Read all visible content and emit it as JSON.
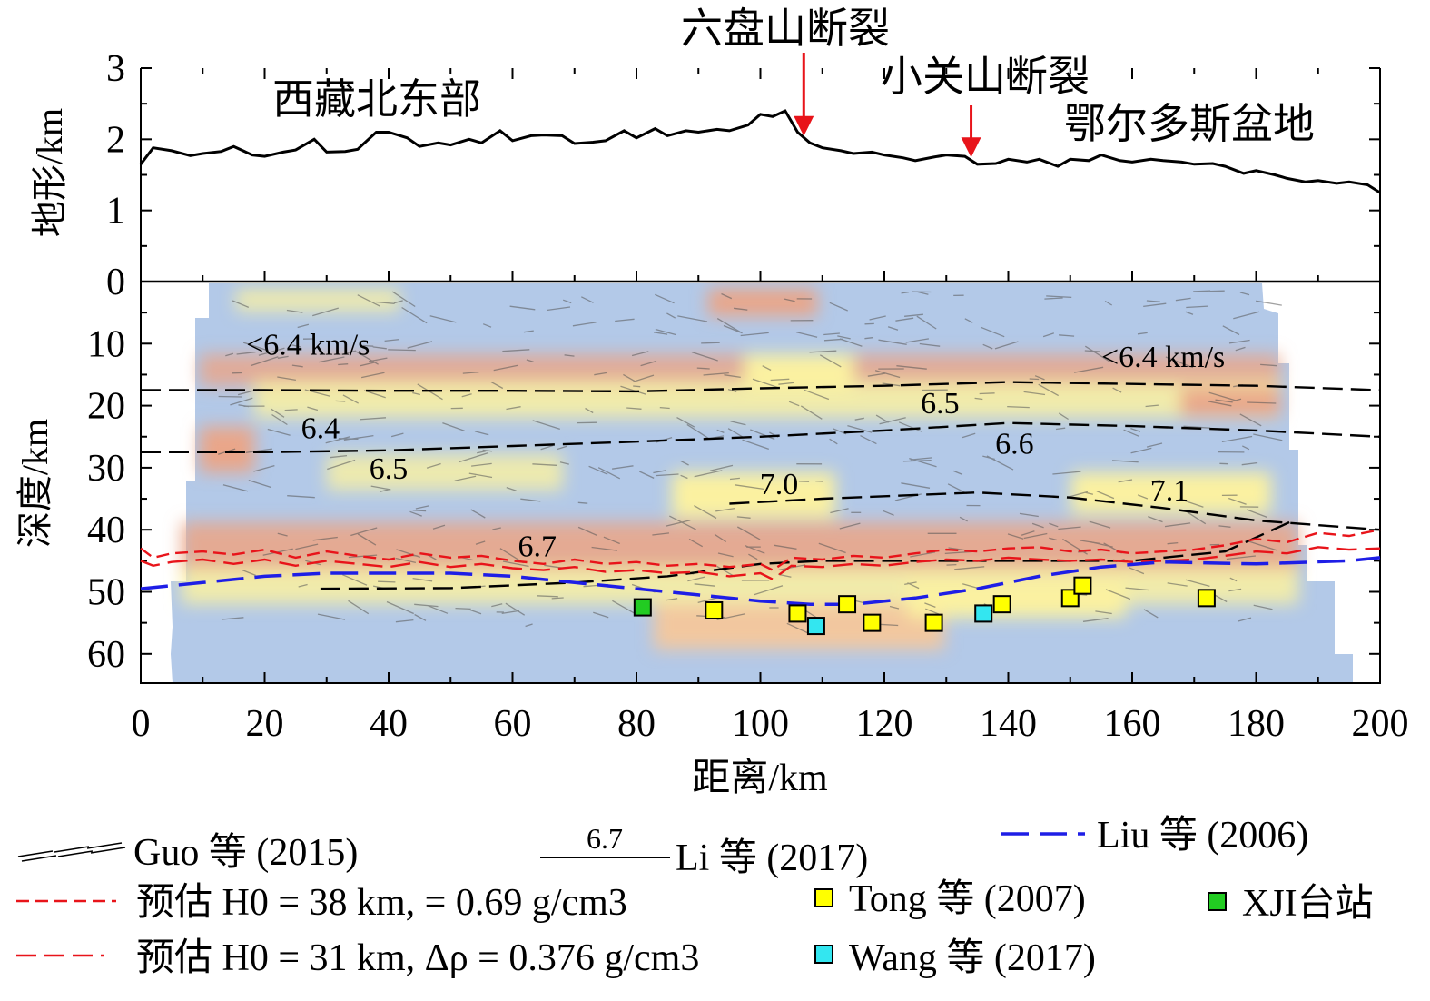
{
  "chart_data": {
    "type": "line",
    "topo_panel": {
      "ylabel": "地形/km",
      "ylim": [
        0,
        3
      ],
      "yticks": [
        "0",
        "1",
        "2",
        "3"
      ],
      "x": [
        0,
        2,
        5,
        8,
        10,
        13,
        15,
        18,
        20,
        23,
        25,
        28,
        30,
        33,
        35,
        38,
        40,
        43,
        45,
        48,
        50,
        53,
        55,
        58,
        60,
        63,
        65,
        68,
        70,
        73,
        75,
        78,
        80,
        83,
        85,
        88,
        90,
        93,
        95,
        98,
        100,
        102,
        104,
        106,
        108,
        110,
        113,
        115,
        118,
        120,
        123,
        125,
        128,
        130,
        133,
        135,
        138,
        140,
        143,
        145,
        148,
        150,
        153,
        155,
        158,
        160,
        163,
        165,
        168,
        170,
        173,
        175,
        178,
        180,
        183,
        185,
        188,
        190,
        193,
        195,
        198,
        200
      ],
      "y": [
        1.65,
        1.88,
        1.84,
        1.77,
        1.8,
        1.83,
        1.9,
        1.78,
        1.76,
        1.82,
        1.85,
        2.0,
        1.82,
        1.83,
        1.86,
        2.1,
        2.1,
        2.02,
        1.9,
        1.95,
        1.92,
        2.0,
        1.95,
        2.12,
        1.98,
        2.05,
        2.06,
        2.05,
        1.94,
        1.96,
        1.98,
        2.12,
        2.02,
        2.15,
        2.05,
        2.12,
        2.1,
        2.14,
        2.12,
        2.2,
        2.35,
        2.32,
        2.4,
        2.1,
        1.95,
        1.88,
        1.84,
        1.8,
        1.82,
        1.78,
        1.74,
        1.7,
        1.75,
        1.78,
        1.76,
        1.65,
        1.66,
        1.72,
        1.68,
        1.72,
        1.62,
        1.72,
        1.7,
        1.78,
        1.7,
        1.68,
        1.72,
        1.7,
        1.68,
        1.65,
        1.66,
        1.62,
        1.52,
        1.56,
        1.5,
        1.45,
        1.4,
        1.42,
        1.38,
        1.4,
        1.36,
        1.25
      ],
      "region_labels": [
        "西藏北东部",
        "鄂尔多斯盆地"
      ],
      "arrows": [
        {
          "label": "六盘山断裂",
          "x": 107
        },
        {
          "label": "小关山断裂",
          "x": 134
        }
      ]
    },
    "depth_panel": {
      "ylabel": "深度/km",
      "ylim": [
        65,
        0
      ],
      "yticks": [
        "0",
        "10",
        "20",
        "30",
        "40",
        "50",
        "60"
      ],
      "xlabel": "距离/km",
      "xlim": [
        0,
        200
      ],
      "xticks": [
        "0",
        "20",
        "40",
        "60",
        "80",
        "100",
        "120",
        "140",
        "160",
        "180",
        "200"
      ],
      "velocity_labels": [
        {
          "text": "<6.4 km/s",
          "x": 27,
          "y": 10
        },
        {
          "text": "<6.4 km/s",
          "x": 165,
          "y": 12
        },
        {
          "text": "6.5",
          "x": 129,
          "y": 19.5
        },
        {
          "text": "6.4",
          "x": 29,
          "y": 23.5
        },
        {
          "text": "6.6",
          "x": 141,
          "y": 26
        },
        {
          "text": "6.5",
          "x": 40,
          "y": 30
        },
        {
          "text": "7.0",
          "x": 103,
          "y": 32.5
        },
        {
          "text": "7.1",
          "x": 166,
          "y": 33.5
        },
        {
          "text": "6.7",
          "x": 64,
          "y": 42.5
        }
      ],
      "li_contours": [
        {
          "x": [
            0,
            20,
            40,
            60,
            80,
            100,
            120,
            140,
            160,
            180,
            200
          ],
          "y": [
            17.5,
            17.5,
            17.6,
            17.6,
            17.7,
            17.2,
            16.8,
            16.2,
            16.5,
            16.8,
            17.5
          ]
        },
        {
          "x": [
            0,
            20,
            40,
            60,
            80,
            100,
            120,
            140,
            160,
            180,
            200
          ],
          "y": [
            27.5,
            27.5,
            27.2,
            26.5,
            25.8,
            25,
            24,
            22.8,
            23.3,
            24,
            25
          ]
        },
        {
          "x": [
            95,
            110,
            120,
            135,
            150,
            165,
            180,
            200
          ],
          "y": [
            35.8,
            35,
            34.6,
            34,
            34.8,
            36.5,
            38.5,
            40
          ]
        },
        {
          "x": [
            29,
            50,
            70,
            85,
            100,
            110,
            125,
            140,
            160,
            175,
            186
          ],
          "y": [
            49.5,
            49.4,
            48.5,
            47.5,
            45.5,
            45,
            45,
            45,
            45,
            43.5,
            38.5
          ]
        }
      ],
      "red_estimate_38": {
        "x": [
          0,
          2,
          5,
          10,
          15,
          20,
          25,
          30,
          35,
          40,
          45,
          50,
          55,
          60,
          65,
          70,
          75,
          80,
          85,
          90,
          95,
          100,
          102,
          105,
          110,
          115,
          120,
          125,
          130,
          135,
          140,
          145,
          150,
          155,
          160,
          165,
          170,
          175,
          180,
          185,
          190,
          195,
          200
        ],
        "y": [
          43,
          44.5,
          43.8,
          43.5,
          44,
          43.2,
          44.5,
          43.5,
          44.2,
          44.8,
          43.8,
          44.5,
          44.2,
          45,
          45.5,
          44.8,
          45.5,
          45.2,
          45.8,
          45.5,
          46,
          45.5,
          46.5,
          44.5,
          44.8,
          44.2,
          44.5,
          43.8,
          43.2,
          43.5,
          43.0,
          42.8,
          43.5,
          43.2,
          43.8,
          43.5,
          43.2,
          42.5,
          41.5,
          42,
          40.5,
          41,
          40
        ]
      },
      "red_estimate_31": {
        "x": [
          0,
          2,
          5,
          10,
          15,
          20,
          25,
          30,
          35,
          40,
          45,
          50,
          55,
          60,
          65,
          70,
          75,
          80,
          85,
          90,
          95,
          100,
          102,
          105,
          110,
          115,
          120,
          125,
          130,
          135,
          140,
          145,
          150,
          155,
          160,
          165,
          170,
          175,
          180,
          185,
          190,
          195,
          200
        ],
        "y": [
          45,
          45.8,
          45.2,
          44.8,
          45.5,
          44.8,
          45.8,
          45,
          45.5,
          46,
          45.2,
          46,
          45.5,
          46.2,
          46.5,
          46,
          46.8,
          46.5,
          47,
          46.8,
          47.5,
          47,
          48,
          45.8,
          46,
          45.5,
          45.8,
          45.2,
          44.8,
          45,
          44.5,
          44.8,
          45,
          44.8,
          45.2,
          45,
          44.8,
          44.2,
          43.5,
          43.8,
          42.8,
          43.2,
          43
        ]
      },
      "liu": {
        "x": [
          0,
          10,
          20,
          30,
          40,
          50,
          60,
          70,
          80,
          90,
          100,
          108,
          115,
          125,
          135,
          145,
          155,
          165,
          180,
          195,
          200
        ],
        "y": [
          49.5,
          48.5,
          47.5,
          47,
          47,
          47,
          47.5,
          48.5,
          49.5,
          50.5,
          51.5,
          52,
          52,
          51,
          49.5,
          47.5,
          46,
          45.2,
          45.5,
          45,
          44.5
        ]
      },
      "tong": {
        "x": [
          92.5,
          106,
          114,
          118,
          128,
          139,
          150,
          152,
          172
        ],
        "y": [
          53,
          53.5,
          52,
          55,
          55,
          52,
          51,
          49,
          51
        ]
      },
      "wang": {
        "x": [
          109,
          136
        ],
        "y": [
          55.5,
          53.5
        ]
      },
      "xji": {
        "x": [
          81
        ],
        "y": [
          52.5
        ]
      }
    },
    "legend": {
      "guo": "Guo 等 (2015)",
      "li_value": "6.7",
      "li": "Li 等 (2017)",
      "liu": "Liu 等 (2006)",
      "est38": "预估 H0 = 38 km,  = 0.69 g/cm3",
      "est31": "预估  H0 = 31 km, Δρ = 0.376 g/cm3",
      "tong": "Tong 等 (2007)",
      "wang": "Wang 等 (2017)",
      "xji": "XJI台站"
    },
    "colors": {
      "topo": "#000000",
      "arrow": "#e8141a",
      "red_est": "#e8141a",
      "liu": "#1e1ee6",
      "tong": "#ffff00",
      "wang": "#33e6f0",
      "xji": "#22cc22",
      "slow": "#e8a58a",
      "mid": "#fbf3a4",
      "fast": "#a9bfe3"
    }
  }
}
